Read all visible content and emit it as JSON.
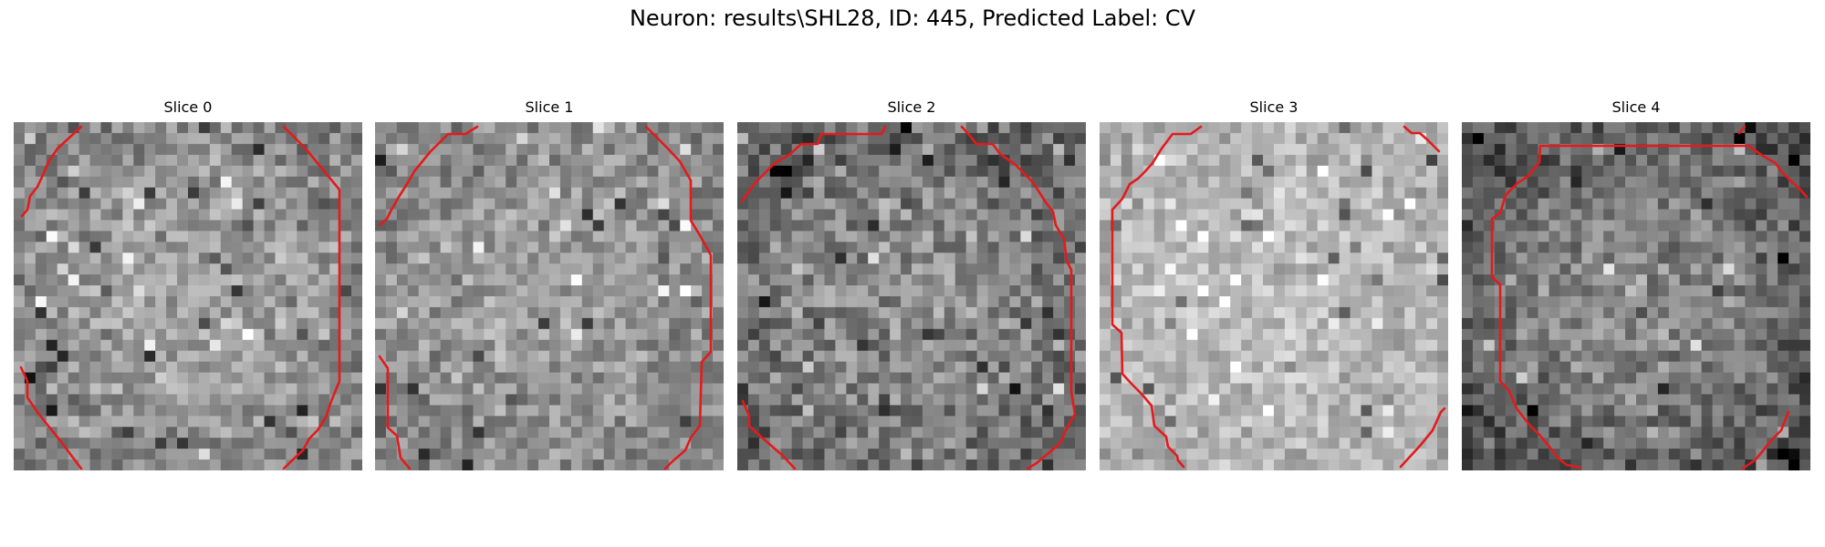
{
  "figure": {
    "title": "Neuron: results\\SHL28, ID: 445, Predicted Label: CV"
  },
  "colors": {
    "contour": "#e41a1c",
    "grayscale_dark": "#000000",
    "grayscale_light": "#ffffff"
  },
  "panels": [
    {
      "title": "Slice 0"
    },
    {
      "title": "Slice 1"
    },
    {
      "title": "Slice 2"
    },
    {
      "title": "Slice 3"
    },
    {
      "title": "Slice 4"
    }
  ],
  "image": {
    "grid_size": 32,
    "colormap": "gray",
    "overlay": "red contour"
  }
}
